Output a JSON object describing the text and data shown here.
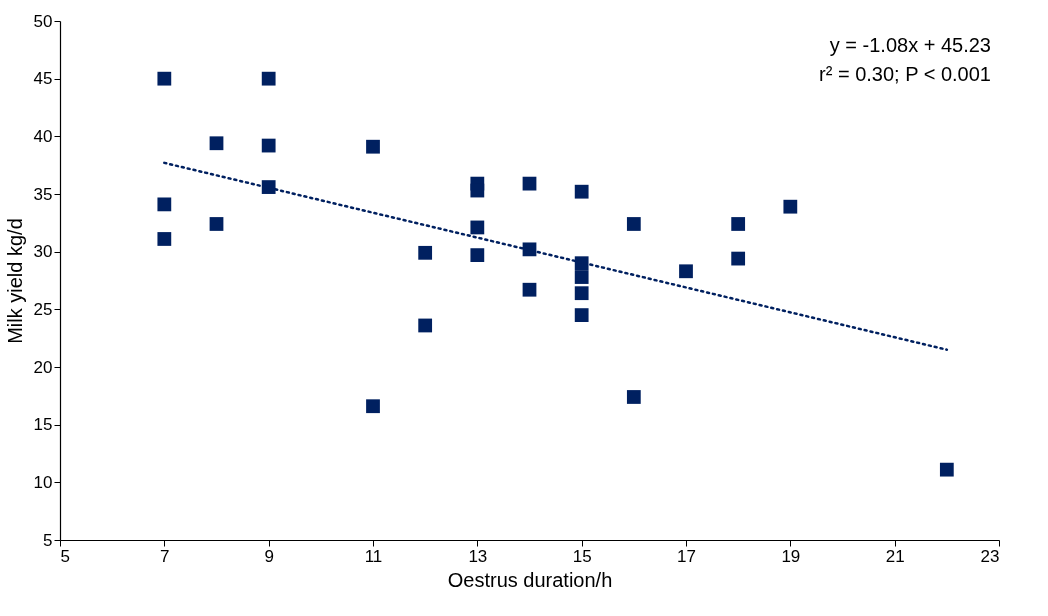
{
  "chart_data": {
    "type": "scatter",
    "xlabel": "Oestrus duration/h",
    "ylabel": "Milk yield kg/d",
    "xlim": [
      5,
      23
    ],
    "xticks": [
      5,
      7,
      9,
      11,
      13,
      15,
      17,
      19,
      21,
      23
    ],
    "ylim": [
      5,
      50
    ],
    "yticks": [
      5,
      10,
      15,
      20,
      25,
      30,
      35,
      40,
      45,
      50
    ],
    "grid": false,
    "legend": false,
    "marker": "square",
    "annotations": [
      "y = -1.08x + 45.23",
      "r² = 0.30; P < 0.001"
    ],
    "series": [
      {
        "type": "scatter",
        "color": "#002060",
        "x": [
          7,
          7,
          7,
          8,
          8,
          9,
          9,
          9,
          11,
          11,
          12,
          12,
          13,
          13,
          13,
          13,
          14,
          14,
          14,
          15,
          15,
          15,
          15,
          15,
          16,
          16,
          17,
          18,
          18,
          19,
          22
        ],
        "values": [
          45,
          34.1,
          31.1,
          39.4,
          32.4,
          45,
          39.2,
          35.6,
          39.1,
          16.6,
          29.9,
          23.6,
          35.9,
          35.3,
          32.1,
          29.7,
          35.9,
          30.2,
          26.7,
          35.2,
          29.0,
          27.8,
          26.4,
          24.5,
          32.4,
          17.4,
          28.3,
          32.4,
          29.4,
          33.9,
          11.1
        ]
      },
      {
        "type": "line",
        "color": "#002060",
        "line_style": "dotted",
        "marker": "none",
        "x": [
          7,
          22
        ],
        "values": [
          37.7,
          21.5
        ]
      }
    ]
  }
}
